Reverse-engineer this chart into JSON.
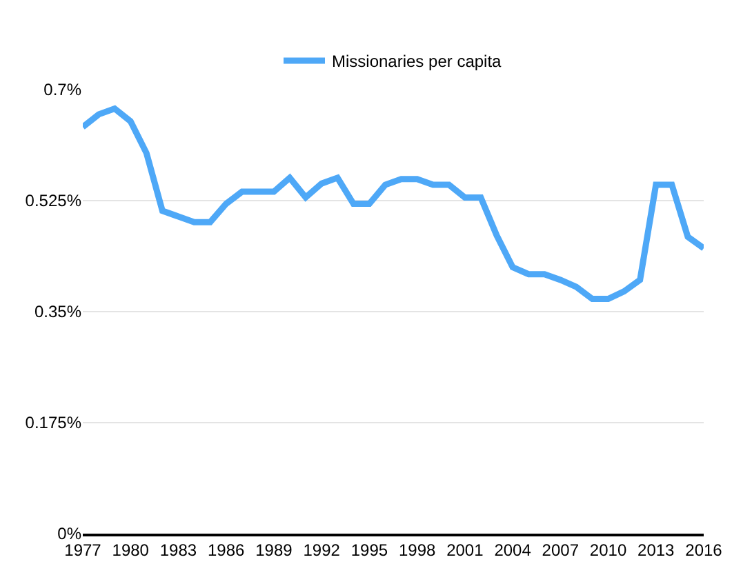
{
  "chart_data": {
    "type": "line",
    "x": [
      1977,
      1978,
      1979,
      1980,
      1981,
      1982,
      1983,
      1984,
      1985,
      1986,
      1987,
      1988,
      1989,
      1990,
      1991,
      1992,
      1993,
      1994,
      1995,
      1996,
      1997,
      1998,
      1999,
      2000,
      2001,
      2002,
      2003,
      2004,
      2005,
      2006,
      2007,
      2008,
      2009,
      2010,
      2011,
      2012,
      2013,
      2014,
      2015,
      2016
    ],
    "series": [
      {
        "name": "Missionaries per capita",
        "color": "#4ea8f7",
        "values": [
          0.641,
          0.661,
          0.67,
          0.65,
          0.6,
          0.509,
          0.5,
          0.491,
          0.491,
          0.52,
          0.539,
          0.539,
          0.539,
          0.561,
          0.53,
          0.552,
          0.561,
          0.52,
          0.52,
          0.55,
          0.559,
          0.559,
          0.55,
          0.55,
          0.53,
          0.53,
          0.47,
          0.42,
          0.409,
          0.409,
          0.4,
          0.389,
          0.37,
          0.37,
          0.382,
          0.4,
          0.55,
          0.55,
          0.468,
          0.45
        ]
      }
    ],
    "xlim": [
      1977,
      2016
    ],
    "xticks": [
      1977,
      1980,
      1983,
      1986,
      1989,
      1992,
      1995,
      1998,
      2001,
      2004,
      2007,
      2010,
      2013,
      2016
    ],
    "ylim": [
      0,
      0.7
    ],
    "yticks": [
      {
        "value": 0,
        "label": "0%"
      },
      {
        "value": 0.175,
        "label": "0.175%"
      },
      {
        "value": 0.35,
        "label": "0.35%"
      },
      {
        "value": 0.525,
        "label": "0.525%"
      },
      {
        "value": 0.7,
        "label": "0.7%"
      }
    ],
    "grid": "y",
    "legend": "top",
    "marker": "none",
    "line_style": "solid"
  }
}
